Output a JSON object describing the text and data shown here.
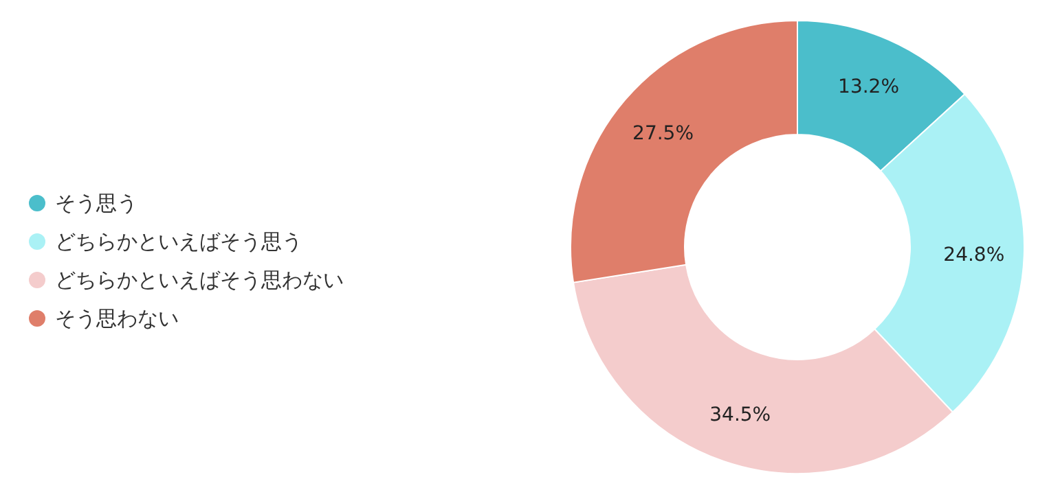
{
  "chart_data": {
    "type": "donut",
    "categories": [
      "そう思う",
      "どちらかといえばそう思う",
      "どちらかといえばそう思わない",
      "そう思わない"
    ],
    "values": [
      13.2,
      24.8,
      34.5,
      27.5
    ],
    "colors": [
      "#4bbecb",
      "#aaf1f5",
      "#f4cccc",
      "#df7e6a"
    ],
    "value_labels": [
      "13.2%",
      "24.8%",
      "34.5%",
      "27.5%"
    ],
    "legend": "left"
  }
}
